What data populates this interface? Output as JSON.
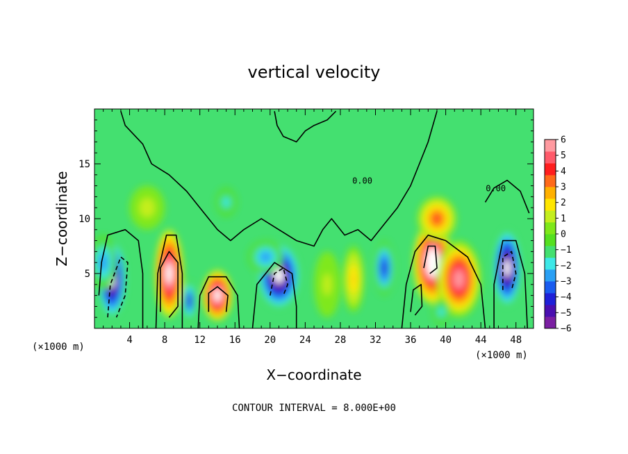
{
  "chart_data": {
    "type": "heatmap",
    "title": "vertical velocity",
    "xlabel": "X−coordinate",
    "ylabel": "Z−coordinate",
    "x_unit_left": "(×1000 m)",
    "x_unit_right": "(×1000 m)",
    "xlim": [
      0,
      50
    ],
    "ylim": [
      0,
      20
    ],
    "x_ticks": [
      4,
      8,
      12,
      16,
      20,
      24,
      28,
      32,
      36,
      40,
      44,
      48
    ],
    "x_tick_labels": [
      "4",
      "8",
      "12",
      "16",
      "20",
      "24",
      "28",
      "32",
      "36",
      "40",
      "44",
      "48"
    ],
    "y_ticks": [
      5,
      10,
      15
    ],
    "y_tick_labels": [
      "5",
      "10",
      "15"
    ],
    "contour_note": "CONTOUR INTERVAL = 8.000E+00",
    "contour_labels": [
      "0.00",
      "0.00"
    ],
    "colorbar": {
      "min": -6,
      "max": 6,
      "tick_values": [
        6,
        5,
        4,
        3,
        2,
        1,
        0,
        -1,
        -2,
        -3,
        -4,
        -5,
        -6
      ],
      "tick_labels": [
        "6",
        "5",
        "4",
        "3",
        "2",
        "1",
        "0",
        "−1",
        "−2",
        "−3",
        "−4",
        "−5",
        "−6"
      ],
      "colors": [
        "#7b1fa2",
        "#4a0fb0",
        "#1f20d8",
        "#1a5cf0",
        "#2aa0f5",
        "#3ee8e8",
        "#44e070",
        "#55e020",
        "#7fe81a",
        "#c4ee1e",
        "#ffe600",
        "#ffb000",
        "#ff6a1a",
        "#ff1e1e",
        "#ff5a6a",
        "#ff9aa0"
      ]
    },
    "cells": [
      {
        "x": 2.0,
        "z": 4.5,
        "w": -7.0,
        "sx": 1.6,
        "sz": 3.5
      },
      {
        "x": 1.0,
        "z": 6.0,
        "w": -3.0,
        "sx": 1.5,
        "sz": 2.5
      },
      {
        "x": 8.5,
        "z": 5.0,
        "w": 7.5,
        "sx": 1.6,
        "sz": 4.0
      },
      {
        "x": 10.8,
        "z": 2.5,
        "w": -5.0,
        "sx": 0.8,
        "sz": 1.8
      },
      {
        "x": 14.0,
        "z": 3.0,
        "w": 7.0,
        "sx": 1.7,
        "sz": 2.3
      },
      {
        "x": 21.0,
        "z": 4.8,
        "w": -7.0,
        "sx": 2.4,
        "sz": 3.0
      },
      {
        "x": 19.5,
        "z": 6.5,
        "w": -3.0,
        "sx": 2.0,
        "sz": 1.5
      },
      {
        "x": 15.0,
        "z": 11.5,
        "w": -2.0,
        "sx": 1.2,
        "sz": 1.3
      },
      {
        "x": 33.0,
        "z": 5.5,
        "w": -4.5,
        "sx": 1.2,
        "sz": 2.5
      },
      {
        "x": 29.5,
        "z": 4.5,
        "w": 2.5,
        "sx": 1.2,
        "sz": 3.0
      },
      {
        "x": 38.5,
        "z": 6.0,
        "w": 8.0,
        "sx": 2.2,
        "sz": 3.8
      },
      {
        "x": 41.5,
        "z": 4.5,
        "w": 6.0,
        "sx": 2.5,
        "sz": 3.5
      },
      {
        "x": 39.0,
        "z": 10.0,
        "w": 4.0,
        "sx": 2.2,
        "sz": 2.0
      },
      {
        "x": 47.0,
        "z": 5.5,
        "w": -7.0,
        "sx": 1.6,
        "sz": 3.5
      },
      {
        "x": 39.5,
        "z": 1.5,
        "w": -2.0,
        "sx": 1.0,
        "sz": 1.2
      },
      {
        "x": 6.0,
        "z": 11.0,
        "w": 1.2,
        "sx": 2.0,
        "sz": 2.0
      },
      {
        "x": 26.5,
        "z": 4.0,
        "w": 1.0,
        "sx": 1.5,
        "sz": 3.0
      }
    ],
    "contours": [
      {
        "style": "solid",
        "points": [
          [
            3.0,
            19.8
          ],
          [
            3.5,
            18.5
          ],
          [
            5.5,
            16.8
          ],
          [
            6.5,
            15.0
          ],
          [
            7.5,
            14.5
          ],
          [
            8.5,
            14.0
          ],
          [
            10.5,
            12.5
          ],
          [
            12.0,
            11.0
          ],
          [
            14.0,
            9.0
          ],
          [
            15.5,
            8.0
          ],
          [
            17.0,
            9.0
          ],
          [
            19.0,
            10.0
          ],
          [
            21.0,
            9.0
          ],
          [
            23.0,
            8.0
          ],
          [
            25.0,
            7.5
          ],
          [
            26.0,
            9.0
          ],
          [
            27.0,
            10.0
          ],
          [
            28.5,
            8.5
          ],
          [
            30.0,
            9.0
          ],
          [
            31.5,
            8.0
          ],
          [
            33.0,
            9.5
          ],
          [
            34.5,
            11.0
          ],
          [
            36.0,
            13.0
          ],
          [
            37.0,
            15.0
          ],
          [
            38.0,
            17.0
          ],
          [
            39.0,
            19.8
          ]
        ]
      },
      {
        "style": "solid",
        "points": [
          [
            20.5,
            19.8
          ],
          [
            20.8,
            18.5
          ],
          [
            21.5,
            17.5
          ],
          [
            23.0,
            17.0
          ],
          [
            24.0,
            18.0
          ],
          [
            25.0,
            18.5
          ],
          [
            26.5,
            19.0
          ],
          [
            27.5,
            19.8
          ]
        ]
      },
      {
        "style": "solid",
        "points": [
          [
            44.5,
            11.5
          ],
          [
            45.5,
            12.8
          ],
          [
            47.0,
            13.5
          ],
          [
            48.5,
            12.5
          ],
          [
            49.5,
            10.5
          ]
        ]
      },
      {
        "style": "solid",
        "points": [
          [
            0.5,
            3.0
          ],
          [
            0.8,
            6.0
          ],
          [
            1.5,
            8.5
          ],
          [
            3.5,
            9.0
          ],
          [
            5.0,
            8.0
          ],
          [
            5.5,
            5.0
          ],
          [
            5.5,
            0.0
          ]
        ]
      },
      {
        "style": "solid",
        "points": [
          [
            7.0,
            0.0
          ],
          [
            7.2,
            5.0
          ],
          [
            8.2,
            8.5
          ],
          [
            9.3,
            8.5
          ],
          [
            10.0,
            5.0
          ],
          [
            10.0,
            0.0
          ]
        ]
      },
      {
        "style": "solid",
        "points": [
          [
            11.8,
            0.0
          ],
          [
            12.0,
            3.0
          ],
          [
            13.0,
            4.7
          ],
          [
            15.0,
            4.7
          ],
          [
            16.3,
            3.0
          ],
          [
            16.5,
            0.0
          ]
        ]
      },
      {
        "style": "solid",
        "points": [
          [
            18.0,
            0.0
          ],
          [
            18.5,
            4.0
          ],
          [
            20.5,
            6.0
          ],
          [
            22.5,
            5.0
          ],
          [
            23.0,
            2.0
          ],
          [
            23.0,
            0.0
          ]
        ]
      },
      {
        "style": "solid",
        "points": [
          [
            35.0,
            0.0
          ],
          [
            35.5,
            4.0
          ],
          [
            36.5,
            7.0
          ],
          [
            38.0,
            8.5
          ],
          [
            40.0,
            8.0
          ],
          [
            42.5,
            6.5
          ],
          [
            44.0,
            4.0
          ],
          [
            44.5,
            0.0
          ]
        ]
      },
      {
        "style": "solid",
        "points": [
          [
            45.5,
            0.0
          ],
          [
            45.5,
            4.0
          ],
          [
            46.5,
            8.0
          ],
          [
            48.0,
            8.0
          ],
          [
            49.0,
            5.0
          ],
          [
            49.3,
            0.0
          ]
        ]
      },
      {
        "style": "dashed",
        "points": [
          [
            1.5,
            1.0
          ],
          [
            1.8,
            4.0
          ],
          [
            3.0,
            6.5
          ],
          [
            3.8,
            6.0
          ],
          [
            3.5,
            3.0
          ],
          [
            2.5,
            1.0
          ]
        ]
      },
      {
        "style": "dashed",
        "points": [
          [
            20.0,
            3.0
          ],
          [
            20.5,
            5.0
          ],
          [
            21.5,
            5.5
          ],
          [
            22.0,
            4.0
          ],
          [
            21.5,
            3.0
          ]
        ]
      },
      {
        "style": "dashed",
        "points": [
          [
            46.5,
            3.5
          ],
          [
            46.5,
            6.5
          ],
          [
            47.5,
            7.0
          ],
          [
            48.0,
            5.0
          ],
          [
            47.5,
            3.5
          ]
        ]
      },
      {
        "style": "solid",
        "points": [
          [
            7.5,
            1.5
          ],
          [
            7.5,
            5.5
          ],
          [
            8.5,
            7.0
          ],
          [
            9.5,
            6.0
          ],
          [
            9.5,
            2.0
          ],
          [
            8.5,
            1.0
          ]
        ]
      },
      {
        "style": "solid",
        "points": [
          [
            13.0,
            1.5
          ],
          [
            13.0,
            3.2
          ],
          [
            14.0,
            3.8
          ],
          [
            15.2,
            3.0
          ],
          [
            15.0,
            1.5
          ]
        ]
      },
      {
        "style": "solid",
        "points": [
          [
            37.5,
            5.5
          ],
          [
            38.0,
            7.5
          ],
          [
            38.8,
            7.5
          ],
          [
            39.0,
            5.5
          ],
          [
            38.2,
            5.0
          ]
        ]
      },
      {
        "style": "solid",
        "points": [
          [
            36.0,
            1.5
          ],
          [
            36.3,
            3.5
          ],
          [
            37.2,
            4.0
          ],
          [
            37.3,
            2.0
          ],
          [
            36.5,
            1.2
          ]
        ]
      }
    ]
  }
}
